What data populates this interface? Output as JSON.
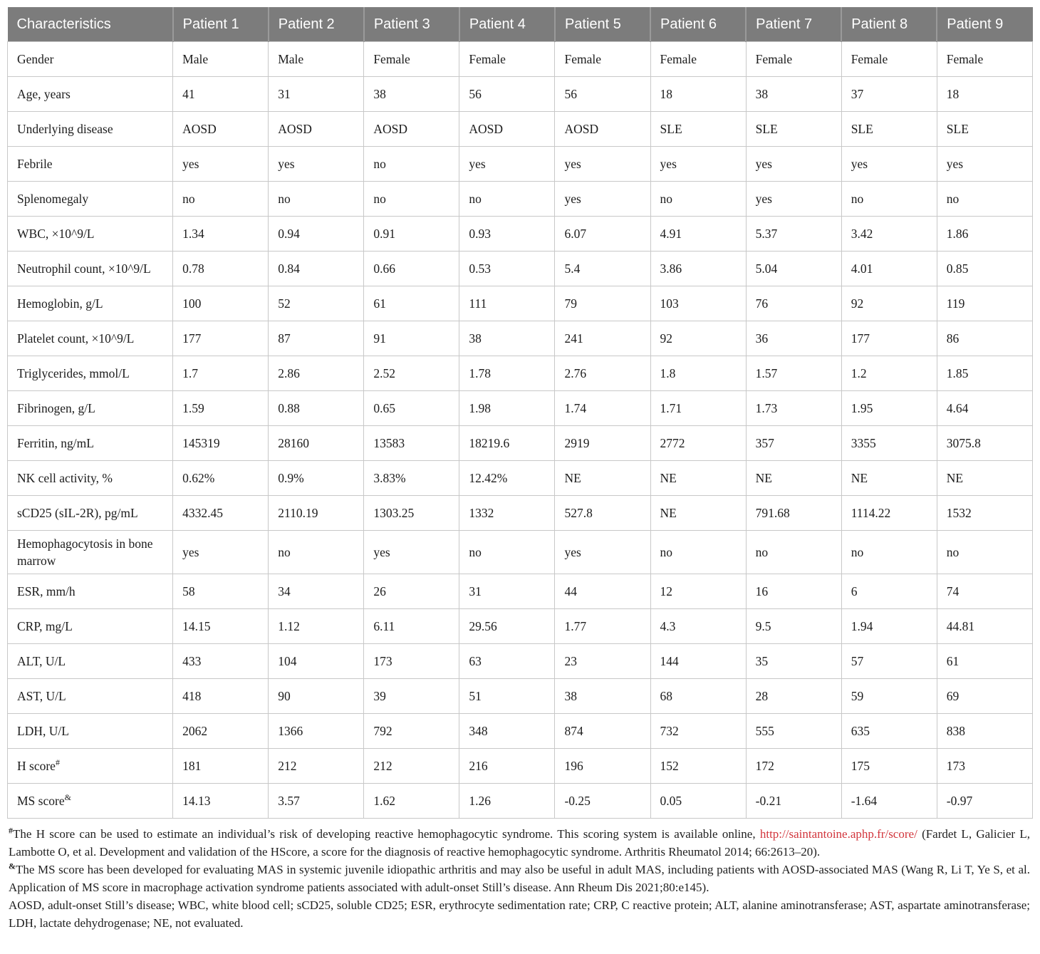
{
  "table": {
    "header": [
      "Characteristics",
      "Patient 1",
      "Patient 2",
      "Patient 3",
      "Patient 4",
      "Patient 5",
      "Patient 6",
      "Patient 7",
      "Patient 8",
      "Patient 9"
    ],
    "rows": [
      {
        "label": "Gender",
        "sup": "",
        "values": [
          "Male",
          "Male",
          "Female",
          "Female",
          "Female",
          "Female",
          "Female",
          "Female",
          "Female"
        ]
      },
      {
        "label": "Age, years",
        "sup": "",
        "values": [
          "41",
          "31",
          "38",
          "56",
          "56",
          "18",
          "38",
          "37",
          "18"
        ]
      },
      {
        "label": "Underlying disease",
        "sup": "",
        "values": [
          "AOSD",
          "AOSD",
          "AOSD",
          "AOSD",
          "AOSD",
          "SLE",
          "SLE",
          "SLE",
          "SLE"
        ]
      },
      {
        "label": "Febrile",
        "sup": "",
        "values": [
          "yes",
          "yes",
          "no",
          "yes",
          "yes",
          "yes",
          "yes",
          "yes",
          "yes"
        ]
      },
      {
        "label": "Splenomegaly",
        "sup": "",
        "values": [
          "no",
          "no",
          "no",
          "no",
          "yes",
          "no",
          "yes",
          "no",
          "no"
        ]
      },
      {
        "label": "WBC, ×10^9/L",
        "sup": "",
        "values": [
          "1.34",
          "0.94",
          "0.91",
          "0.93",
          "6.07",
          "4.91",
          "5.37",
          "3.42",
          "1.86"
        ]
      },
      {
        "label": "Neutrophil count, ×10^9/L",
        "sup": "",
        "values": [
          "0.78",
          "0.84",
          "0.66",
          "0.53",
          "5.4",
          "3.86",
          "5.04",
          "4.01",
          "0.85"
        ]
      },
      {
        "label": "Hemoglobin, g/L",
        "sup": "",
        "values": [
          "100",
          "52",
          "61",
          "111",
          "79",
          "103",
          "76",
          "92",
          "119"
        ]
      },
      {
        "label": "Platelet count, ×10^9/L",
        "sup": "",
        "values": [
          "177",
          "87",
          "91",
          "38",
          "241",
          "92",
          "36",
          "177",
          "86"
        ]
      },
      {
        "label": "Triglycerides, mmol/L",
        "sup": "",
        "values": [
          "1.7",
          "2.86",
          "2.52",
          "1.78",
          "2.76",
          "1.8",
          "1.57",
          "1.2",
          "1.85"
        ]
      },
      {
        "label": "Fibrinogen, g/L",
        "sup": "",
        "values": [
          "1.59",
          "0.88",
          "0.65",
          "1.98",
          "1.74",
          "1.71",
          "1.73",
          "1.95",
          "4.64"
        ]
      },
      {
        "label": "Ferritin, ng/mL",
        "sup": "",
        "values": [
          "145319",
          "28160",
          "13583",
          "18219.6",
          "2919",
          "2772",
          "357",
          "3355",
          "3075.8"
        ]
      },
      {
        "label": "NK cell activity, %",
        "sup": "",
        "values": [
          "0.62%",
          "0.9%",
          "3.83%",
          "12.42%",
          "NE",
          "NE",
          "NE",
          "NE",
          "NE"
        ]
      },
      {
        "label": "sCD25 (sIL-2R), pg/mL",
        "sup": "",
        "values": [
          "4332.45",
          "2110.19",
          "1303.25",
          "1332",
          "527.8",
          "NE",
          "791.68",
          "1114.22",
          "1532"
        ]
      },
      {
        "label": "Hemophagocytosis in bone marrow",
        "sup": "",
        "values": [
          "yes",
          "no",
          "yes",
          "no",
          "yes",
          "no",
          "no",
          "no",
          "no"
        ]
      },
      {
        "label": "ESR, mm/h",
        "sup": "",
        "values": [
          "58",
          "34",
          "26",
          "31",
          "44",
          "12",
          "16",
          "6",
          "74"
        ]
      },
      {
        "label": "CRP, mg/L",
        "sup": "",
        "values": [
          "14.15",
          "1.12",
          "6.11",
          "29.56",
          "1.77",
          "4.3",
          "9.5",
          "1.94",
          "44.81"
        ]
      },
      {
        "label": "ALT, U/L",
        "sup": "",
        "values": [
          "433",
          "104",
          "173",
          "63",
          "23",
          "144",
          "35",
          "57",
          "61"
        ]
      },
      {
        "label": "AST, U/L",
        "sup": "",
        "values": [
          "418",
          "90",
          "39",
          "51",
          "38",
          "68",
          "28",
          "59",
          "69"
        ]
      },
      {
        "label": "LDH, U/L",
        "sup": "",
        "values": [
          "2062",
          "1366",
          "792",
          "348",
          "874",
          "732",
          "555",
          "635",
          "838"
        ]
      },
      {
        "label": "H score",
        "sup": "#",
        "values": [
          "181",
          "212",
          "212",
          "216",
          "196",
          "152",
          "172",
          "175",
          "173"
        ]
      },
      {
        "label": "MS score",
        "sup": "&",
        "values": [
          "14.13",
          "3.57",
          "1.62",
          "1.26",
          "-0.25",
          "0.05",
          "-0.21",
          "-1.64",
          "-0.97"
        ]
      }
    ]
  },
  "footnotes": {
    "note1_sup": "#",
    "note1_before": "The H score can be used to estimate an individual’s risk of developing reactive hemophagocytic syndrome. This scoring system is available online, ",
    "note1_link": "http://saintantoine.aphp.fr/score/",
    "note1_after": " (Fardet L, Galicier L, Lambotte O, et al. Development and validation of the HScore, a score for the diagnosis of reactive hemophagocytic syndrome. Arthritis Rheumatol 2014; 66:2613–20).",
    "note2_sup": "&",
    "note2_text": "The MS score has been developed for evaluating MAS in systemic juvenile idiopathic arthritis and may also be useful in adult MAS, including patients with AOSD-associated MAS (Wang R, Li T, Ye S, et al. Application of MS score in macrophage activation syndrome patients associated with adult-onset Still’s disease. Ann Rheum Dis 2021;80:e145).",
    "note3_text": "AOSD, adult-onset Still’s disease; WBC, white blood cell; sCD25, soluble CD25; ESR, erythrocyte sedimentation rate; CRP, C reactive protein; ALT, alanine aminotransferase; AST, aspartate aminotransferase; LDH, lactate dehydrogenase; NE, not evaluated."
  },
  "colors": {
    "header_bg": "#7c7c7c",
    "header_text": "#ffffff",
    "border": "#c8c8c8",
    "link_red": "#d2353c"
  }
}
